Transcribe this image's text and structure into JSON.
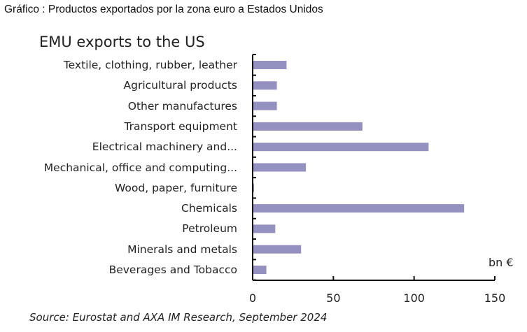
{
  "caption": "Gráfico : Productos exportados por la zona euro a Estados Unidos",
  "source": "Source: Eurostat and AXA IM Research, September 2024",
  "chart_data": {
    "type": "bar",
    "orientation": "horizontal",
    "title": "EMU exports to the US",
    "xlabel": "bn €",
    "xlim": [
      0,
      150
    ],
    "xticks": [
      "0",
      "50",
      "100",
      "150"
    ],
    "categories": [
      "Textile, clothing, rubber, leather",
      "Agricultural products",
      "Other manufactures",
      "Transport equipment",
      "Electrical machinery and...",
      "Mechanical, office and computing...",
      "Wood, paper, furniture",
      "Chemicals",
      "Petroleum",
      "Minerals and metals",
      "Beverages and Tobacco"
    ],
    "values": [
      21,
      15,
      15,
      68,
      109,
      33,
      0.5,
      131,
      14,
      30,
      8.5
    ],
    "bar_color": "#9490c0",
    "grid": false
  }
}
